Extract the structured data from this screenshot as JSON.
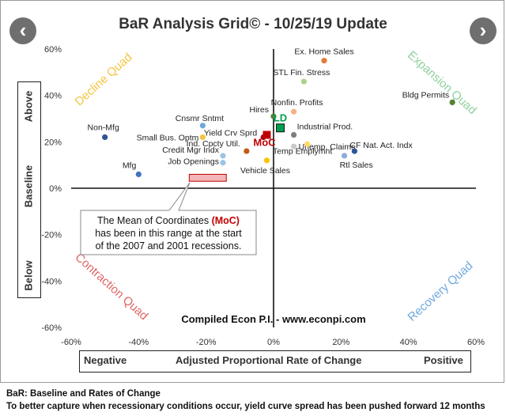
{
  "title": "BaR Analysis Grid© - 10/25/19 Update",
  "nav": {
    "prev_icon": "chevron-left-icon",
    "next_icon": "chevron-right-icon"
  },
  "y_labels": {
    "top": "Above",
    "middle": "Baseline",
    "bottom": "Below"
  },
  "x_labels": {
    "left": "Negative",
    "middle": "Adjusted Proportional Rate of Change",
    "right": "Positive"
  },
  "quadrants": {
    "decline": "Decline Quad",
    "expansion": "Expansion Quad",
    "contraction": "Contraction Quad",
    "recovery": "Recovery Quad"
  },
  "credit": "Compiled Econ P.I. - www.econpi.com",
  "annotation": {
    "line1_pre": "The Mean of Coordinates ",
    "line1_moc": "(MoC)",
    "line2": "has been in this range at the start",
    "line3": "of the 2007 and 2001 recessions."
  },
  "footer": {
    "line1": "BaR: Baseline and Rates of Change",
    "line2": "To better capture when recessionary conditions occur, yield curve spread has been pushed forward 12 months"
  },
  "chart_data": {
    "type": "scatter",
    "title": "BaR Analysis Grid© - 10/25/19 Update",
    "xlabel": "Adjusted Proportional Rate of Change",
    "ylabel": "Baseline",
    "xlim": [
      -60,
      60
    ],
    "ylim": [
      -60,
      60
    ],
    "xticks": [
      "-60%",
      "-40%",
      "-20%",
      "0%",
      "20%",
      "40%",
      "60%"
    ],
    "yticks": [
      "60%",
      "40%",
      "20%",
      "0%",
      "-20%",
      "-40%",
      "-60%"
    ],
    "grid": false,
    "points": [
      {
        "label": "Ex. Home Sales",
        "x": 15,
        "y": 55,
        "color": "#e07b39"
      },
      {
        "label": "STL Fin. Stress",
        "x": 9,
        "y": 46,
        "color": "#a9d18e"
      },
      {
        "label": "Bldg Permits",
        "x": 53,
        "y": 37,
        "color": "#548235"
      },
      {
        "label": "Nonfin. Profits",
        "x": 6,
        "y": 33,
        "color": "#f4b183"
      },
      {
        "label": "Hires",
        "x": 0,
        "y": 31,
        "color": "#548235"
      },
      {
        "label": "Cnsmr Sntmt",
        "x": -21,
        "y": 27,
        "color": "#6fa8dc"
      },
      {
        "label": "Non-Mfg",
        "x": -50,
        "y": 22,
        "color": "#2f5597"
      },
      {
        "label": "Small Bus. Optm",
        "x": -21,
        "y": 22,
        "color": "#f4c542"
      },
      {
        "label": "Yield Crv Sprd",
        "x": -3,
        "y": 22,
        "color": "#a50021"
      },
      {
        "label": "Industrial Prod.",
        "x": 6,
        "y": 23,
        "color": "#7f7f7f"
      },
      {
        "label": "Unemp. Claims",
        "x": 6,
        "y": 18,
        "color": "#c9c9c9"
      },
      {
        "label": "Temp Emplymnt",
        "x": 10,
        "y": 19,
        "color": "#ffd966"
      },
      {
        "label": "CF Nat. Act. Indx",
        "x": 24,
        "y": 16,
        "color": "#2f5597"
      },
      {
        "label": "Rtl Sales",
        "x": 21,
        "y": 14,
        "color": "#8faadc"
      },
      {
        "label": "Ind. Cpcty Util.",
        "x": -8,
        "y": 16,
        "color": "#c55a11"
      },
      {
        "label": "Credit Mgr Indx",
        "x": -15,
        "y": 14,
        "color": "#9dc3e6"
      },
      {
        "label": "Job Openings",
        "x": -15,
        "y": 11,
        "color": "#9dc3e6"
      },
      {
        "label": "Mfg",
        "x": -40,
        "y": 6,
        "color": "#4472c4"
      },
      {
        "label": "Vehicle Sales",
        "x": -2,
        "y": 12,
        "color": "#ffc000"
      }
    ],
    "markers": [
      {
        "label": "MoC",
        "x": -2,
        "y": 23,
        "color": "#c00000"
      },
      {
        "label": "LD",
        "x": 2,
        "y": 26,
        "color": "#00a050"
      }
    ],
    "recession_range": {
      "x": [
        -25,
        -14
      ],
      "y": [
        3,
        6
      ]
    }
  }
}
